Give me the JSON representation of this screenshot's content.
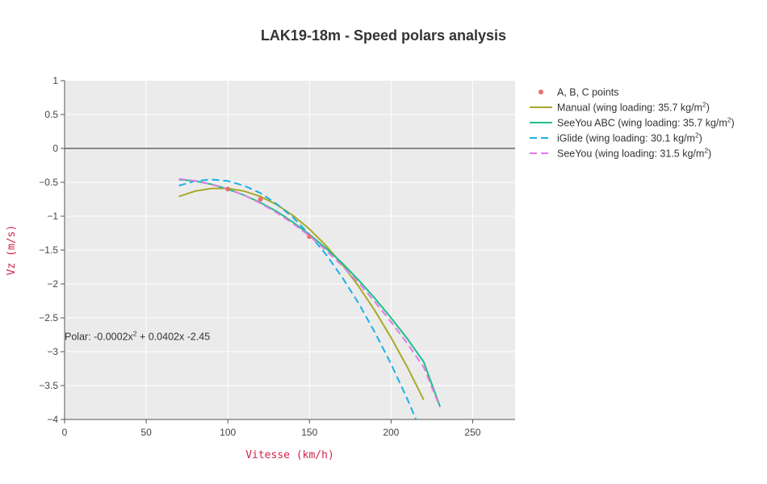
{
  "chart_data": {
    "type": "line",
    "title": "LAK19-18m  - Speed polars analysis",
    "xlabel": "Vitesse (km/h)",
    "ylabel": "Vz (m/s)",
    "xlim": [
      0,
      276
    ],
    "ylim": [
      -4,
      1
    ],
    "x_ticks": [
      0,
      50,
      100,
      150,
      200,
      250
    ],
    "y_ticks": [
      1,
      0.5,
      0,
      -0.5,
      -1,
      -1.5,
      -2,
      -2.5,
      -3,
      -3.5,
      -4
    ],
    "y_tick_labels": [
      "1",
      "0.5",
      "0",
      "−0.5",
      "−1",
      "−1.5",
      "−2",
      "−2.5",
      "−3",
      "−3.5",
      "−4"
    ],
    "grid": true,
    "zero_line": true,
    "legend_position": "right",
    "annotation": {
      "parts": [
        "Polar: -0.0002x",
        "2",
        " + 0.0402x -2.45"
      ],
      "x": 0,
      "y": -2.78
    },
    "series": [
      {
        "name": "A, B, C points",
        "mode": "markers",
        "color": "#e8706a",
        "x": [
          100,
          120,
          150
        ],
        "y": [
          -0.6,
          -0.75,
          -1.3
        ]
      },
      {
        "name_parts": [
          "Manual (wing loading: 35.7 kg/m",
          "2",
          ")"
        ],
        "mode": "line",
        "dash": "solid",
        "color": "#a9a92a",
        "x": [
          70,
          80,
          90,
          100,
          110,
          120,
          130,
          140,
          150,
          160,
          170,
          180,
          190,
          200,
          210,
          220
        ],
        "y": [
          -0.71,
          -0.63,
          -0.59,
          -0.59,
          -0.63,
          -0.71,
          -0.83,
          -0.99,
          -1.19,
          -1.43,
          -1.71,
          -2.03,
          -2.39,
          -2.79,
          -3.23,
          -3.71
        ]
      },
      {
        "name_parts": [
          "SeeYou ABC (wing loading: 35.7 kg/m",
          "2",
          ")"
        ],
        "mode": "line",
        "dash": "solid",
        "color": "#1cbf8a",
        "x": [
          70,
          80,
          90,
          100,
          110,
          120,
          130,
          140,
          150,
          160,
          170,
          180,
          190,
          200,
          210,
          220,
          230
        ],
        "y": [
          -0.46,
          -0.48,
          -0.53,
          -0.6,
          -0.69,
          -0.8,
          -0.93,
          -1.09,
          -1.27,
          -1.47,
          -1.69,
          -1.94,
          -2.21,
          -2.5,
          -2.81,
          -3.15,
          -3.81
        ]
      },
      {
        "name_parts": [
          "iGlide (wing loading: 30.1 kg/m",
          "2",
          ")"
        ],
        "mode": "line",
        "dash": "dash",
        "color": "#1ab0e8",
        "x": [
          70,
          80,
          90,
          100,
          110,
          120,
          130,
          140,
          150,
          160,
          170,
          180,
          190,
          200,
          210,
          220,
          223
        ],
        "y": [
          -0.55,
          -0.48,
          -0.46,
          -0.48,
          -0.55,
          -0.66,
          -0.82,
          -1.02,
          -1.27,
          -1.56,
          -1.9,
          -2.28,
          -2.71,
          -3.18,
          -3.7,
          -4.27,
          -4.0
        ]
      },
      {
        "name_parts": [
          "SeeYou (wing loading: 31.5 kg/m",
          "2",
          ")"
        ],
        "mode": "line",
        "dash": "dash",
        "color": "#e27ce8",
        "x": [
          70,
          80,
          90,
          100,
          110,
          120,
          130,
          140,
          150,
          160,
          170,
          180,
          190,
          200,
          210,
          220,
          230
        ],
        "y": [
          -0.45,
          -0.48,
          -0.53,
          -0.6,
          -0.69,
          -0.81,
          -0.95,
          -1.11,
          -1.29,
          -1.5,
          -1.73,
          -1.98,
          -2.26,
          -2.56,
          -2.88,
          -3.23,
          -3.82
        ]
      }
    ]
  }
}
